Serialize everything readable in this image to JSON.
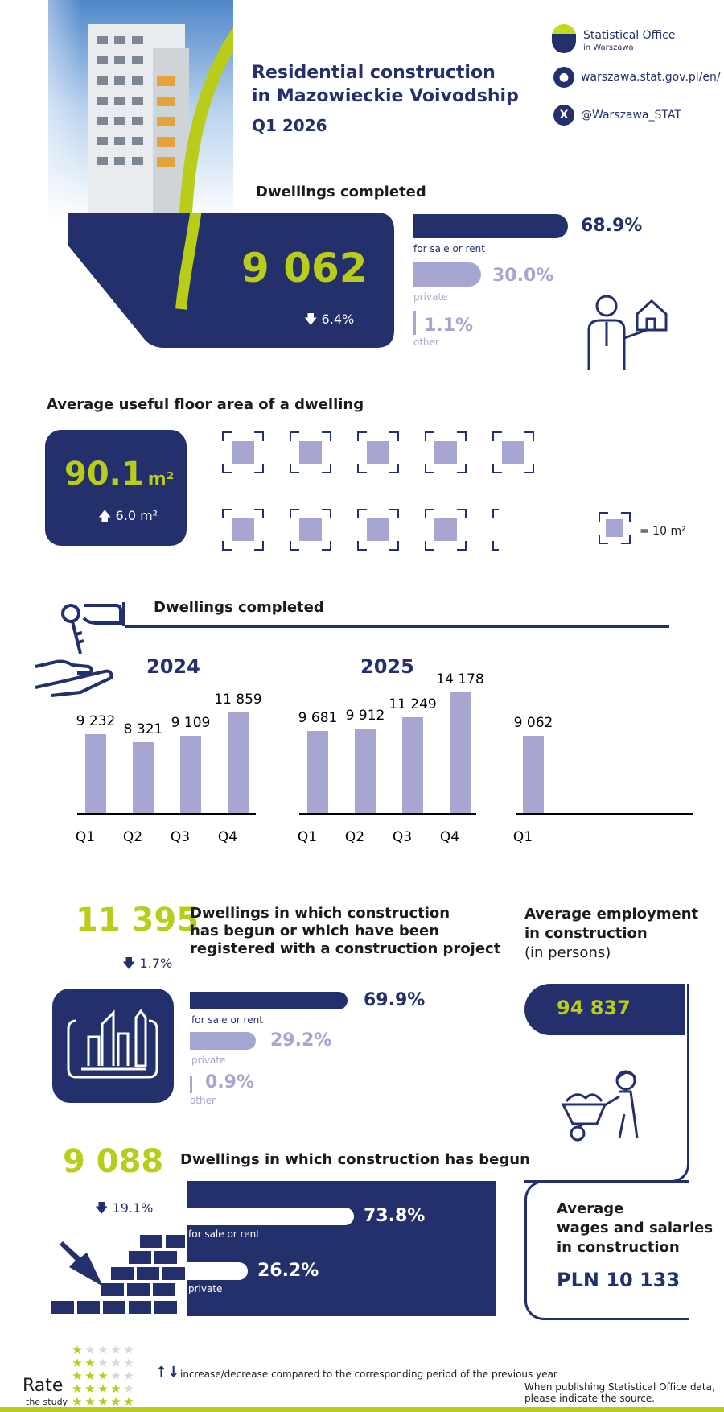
{
  "header": {
    "title_line1": "Residential construction",
    "title_line2": "in Mazowieckie Voivodship",
    "quarter": "Q1 2026",
    "logo_line1": "Statistical Office",
    "logo_line2": "in Warszawa",
    "website": "warszawa.stat.gov.pl/en/",
    "twitter": "@Warszawa_STAT"
  },
  "completed": {
    "heading": "Dwellings completed",
    "value": "9 062",
    "change": "6.4%",
    "breakdown": [
      {
        "label": "for sale or rent",
        "pct": "68.9%",
        "share": 68.9
      },
      {
        "label": "private",
        "pct": "30.0%",
        "share": 30.0
      },
      {
        "label": "other",
        "pct": "1.1%",
        "share": 1.1
      }
    ]
  },
  "floor_area": {
    "heading": "Average useful floor area of a dwelling",
    "value": "90.1",
    "unit": "m²",
    "change": "6.0 m²",
    "legend": "= 10 m²",
    "squares": 9.01
  },
  "chart_section": {
    "heading": "Dwellings completed",
    "year_2024": "2024",
    "year_2025": "2025"
  },
  "chart_data": {
    "type": "bar",
    "title": "Dwellings completed",
    "groups": [
      {
        "year": "2024",
        "categories": [
          "Q1",
          "Q2",
          "Q3",
          "Q4"
        ],
        "values": [
          9232,
          8321,
          9109,
          11859
        ],
        "labels": [
          "9 232",
          "8 321",
          "9 109",
          "11 859"
        ]
      },
      {
        "year": "2025",
        "categories": [
          "Q1",
          "Q2",
          "Q3",
          "Q4"
        ],
        "values": [
          9681,
          9912,
          11249,
          14178
        ],
        "labels": [
          "9 681",
          "9 912",
          "11 249",
          "14 178"
        ]
      },
      {
        "year": "",
        "categories": [
          "Q1"
        ],
        "values": [
          9062
        ],
        "labels": [
          "9 062"
        ]
      }
    ],
    "ylim": [
      0,
      14178
    ]
  },
  "started_registered": {
    "value": "11 395",
    "change": "1.7%",
    "heading_l1": "Dwellings in which construction",
    "heading_l2": "has begun or which have been",
    "heading_l3": "registered with a construction project",
    "breakdown": [
      {
        "label": "for sale or rent",
        "pct": "69.9%",
        "share": 69.9
      },
      {
        "label": "private",
        "pct": "29.2%",
        "share": 29.2
      },
      {
        "label": "other",
        "pct": "0.9%",
        "share": 0.9
      }
    ]
  },
  "employment": {
    "heading_l1": "Average employment",
    "heading_l2": "in construction",
    "heading_l3": "(in persons)",
    "value": "94 837"
  },
  "begun": {
    "value": "9 088",
    "change": "19.1%",
    "heading": "Dwellings in which construction has begun",
    "breakdown": [
      {
        "label": "for sale or rent",
        "pct": "73.8%",
        "share": 73.8
      },
      {
        "label": "private",
        "pct": "26.2%",
        "share": 26.2
      }
    ]
  },
  "wages": {
    "heading_l1": "Average",
    "heading_l2": "wages and salaries",
    "heading_l3": "in construction",
    "value": "PLN 10 133"
  },
  "footer": {
    "rate_l1": "Rate",
    "rate_l2": "the study",
    "legend": "increase/decrease compared to the corresponding period of the previous year",
    "note_l1": "When publishing Statistical Office data,",
    "note_l2": "please indicate the source."
  },
  "colors": {
    "navy": "#23306b",
    "lime": "#b9cc1a",
    "lavender": "#a6a6d0"
  }
}
